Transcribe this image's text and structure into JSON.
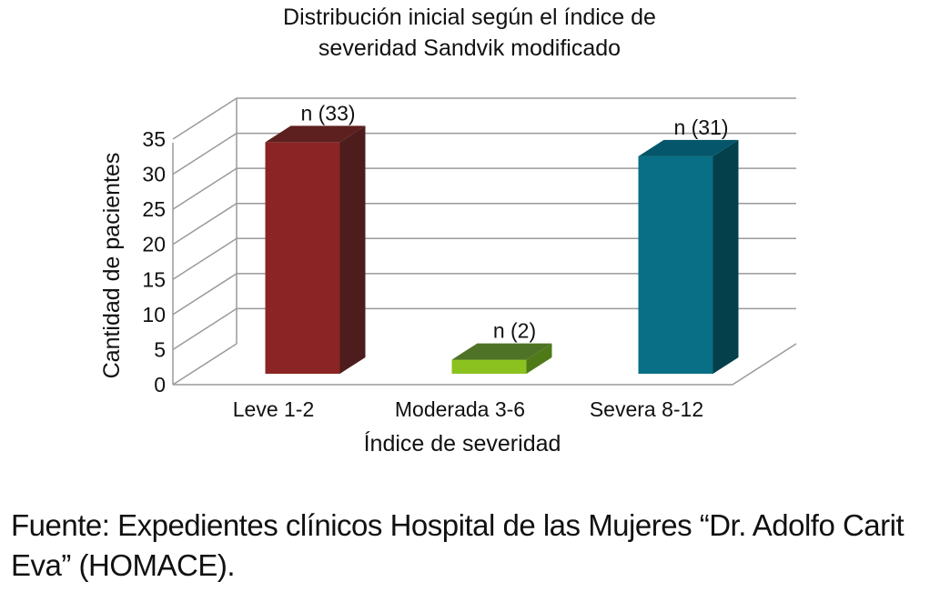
{
  "chart_data": {
    "type": "bar",
    "title_lines": [
      "Distribución inicial según el índice de",
      "severidad Sandvik modificado"
    ],
    "ylabel": "Cantidad de pacientes",
    "xlabel": "Índice de severidad",
    "ylim": [
      0,
      35
    ],
    "yticks": [
      "0",
      "5",
      "10",
      "15",
      "20",
      "25",
      "30",
      "35"
    ],
    "categories": [
      "Leve 1-2",
      "Moderada 3-6",
      "Severa 8-12"
    ],
    "values": [
      33,
      2,
      31
    ],
    "data_labels": [
      "n (33)",
      "n (2)",
      "n (31)"
    ],
    "colors": [
      {
        "front": "#8b2424",
        "side": "#4d1d1d",
        "top": "#5e1f1f"
      },
      {
        "front": "#8bc21f",
        "side": "#4e7a18",
        "top": "#4f7326"
      },
      {
        "front": "#086f86",
        "side": "#043f4c",
        "top": "#05566a"
      }
    ],
    "grid": true
  },
  "source": {
    "text": "Fuente: Expedientes clínicos Hospital de las Mujeres “Dr. Adolfo Carit Eva” (HOMACE)."
  }
}
